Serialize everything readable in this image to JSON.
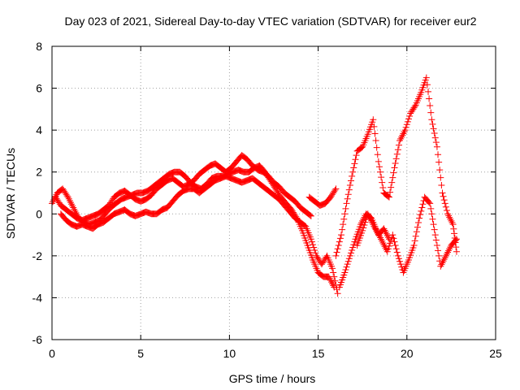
{
  "chart_data": {
    "type": "scatter",
    "title": "Day 023 of 2021, Sidereal Day-to-day VTEC variation (SDTVAR) for receiver eur2",
    "xlabel": "GPS time / hours",
    "ylabel": "SDTVAR / TECUs",
    "xlim": [
      0,
      25
    ],
    "ylim": [
      -6,
      8
    ],
    "xticks": [
      0,
      5,
      10,
      15,
      20,
      25
    ],
    "yticks": [
      -6,
      -4,
      -2,
      0,
      2,
      4,
      6,
      8
    ],
    "grid": true,
    "marker": "+",
    "series": [
      {
        "name": "SDTVAR",
        "color": "#ff0000",
        "tracks": [
          {
            "x": [
              0.0,
              0.3,
              0.6,
              0.9,
              1.2,
              1.5,
              1.8,
              2.1,
              2.4,
              2.7,
              3.0,
              3.3,
              3.6,
              3.9,
              4.2,
              4.5,
              4.8,
              5.1,
              5.4,
              5.7,
              6.0,
              6.3,
              6.6,
              6.9,
              7.2,
              7.5,
              7.8,
              8.1,
              8.4,
              8.7,
              9.0,
              9.3,
              9.6,
              9.9,
              10.2,
              10.5,
              10.8,
              11.1,
              11.4,
              11.7,
              12.0,
              12.3,
              12.6,
              12.9,
              13.2,
              13.5,
              13.8,
              14.1,
              14.4,
              14.7,
              15.0,
              15.3,
              15.6,
              15.9
            ],
            "y": [
              0.5,
              1.0,
              1.2,
              0.8,
              0.3,
              -0.2,
              -0.4,
              -0.5,
              -0.4,
              -0.3,
              0.0,
              0.3,
              0.5,
              0.7,
              0.8,
              0.9,
              1.0,
              1.0,
              1.1,
              1.3,
              1.5,
              1.7,
              1.9,
              2.0,
              2.0,
              1.8,
              1.5,
              1.3,
              1.2,
              1.4,
              1.7,
              1.8,
              1.8,
              1.9,
              2.0,
              2.1,
              2.0,
              2.0,
              2.2,
              2.3,
              2.0,
              1.6,
              1.2,
              0.8,
              0.5,
              0.2,
              -0.2,
              -0.8,
              -1.5,
              -2.2,
              -2.8,
              -3.0,
              -3.0,
              -3.5
            ]
          },
          {
            "x": [
              0.5,
              0.8,
              1.1,
              1.4,
              1.7,
              2.0,
              2.3,
              2.6,
              2.9,
              3.2,
              3.5,
              3.8,
              4.1,
              4.4,
              4.7,
              5.0,
              5.3,
              5.6,
              5.9,
              6.2,
              6.5,
              6.8,
              7.1,
              7.4,
              7.7,
              8.0,
              8.3,
              8.6,
              8.9,
              9.2,
              9.5,
              9.8,
              10.1,
              10.4,
              10.7,
              11.0,
              11.3,
              11.6,
              11.9,
              12.2,
              12.5,
              12.8,
              13.1,
              13.4,
              13.7,
              14.0,
              14.3,
              14.6,
              14.9,
              15.2,
              15.5,
              15.8,
              16.1
            ],
            "y": [
              0.0,
              -0.3,
              -0.5,
              -0.6,
              -0.5,
              -0.6,
              -0.7,
              -0.5,
              -0.4,
              -0.2,
              0.0,
              0.1,
              0.2,
              0.0,
              -0.1,
              0.0,
              0.1,
              0.0,
              0.0,
              0.2,
              0.3,
              0.6,
              0.9,
              1.1,
              1.2,
              1.2,
              1.0,
              1.2,
              1.4,
              1.6,
              1.7,
              1.8,
              1.7,
              1.6,
              1.5,
              1.6,
              1.7,
              1.5,
              1.3,
              1.1,
              0.9,
              0.7,
              0.4,
              0.1,
              -0.2,
              -0.4,
              -0.6,
              -1.2,
              -2.0,
              -2.4,
              -2.0,
              -2.6,
              -3.8
            ]
          },
          {
            "x": [
              0.2,
              0.5,
              0.8,
              1.1,
              1.4,
              1.7,
              2.0,
              2.3,
              2.6,
              2.9,
              3.2,
              3.5,
              3.8,
              4.1,
              4.4,
              4.7,
              5.0,
              5.3,
              5.6,
              5.9,
              6.2,
              6.5,
              6.8,
              7.1,
              7.4,
              7.7,
              8.0,
              8.3,
              8.6,
              8.9,
              9.2,
              9.5,
              9.8,
              10.1,
              10.4,
              10.7,
              11.0,
              11.3,
              11.6,
              11.9,
              12.2,
              12.5,
              12.8,
              13.1,
              13.4,
              13.7,
              14.0,
              14.3,
              14.6
            ],
            "y": [
              0.8,
              0.4,
              0.2,
              0.0,
              -0.2,
              -0.3,
              -0.2,
              -0.1,
              0.0,
              0.2,
              0.4,
              0.8,
              1.0,
              1.1,
              0.9,
              0.7,
              0.6,
              0.7,
              0.9,
              1.2,
              1.4,
              1.6,
              1.7,
              1.5,
              1.3,
              1.4,
              1.6,
              1.9,
              2.1,
              2.3,
              2.4,
              2.2,
              2.0,
              2.2,
              2.5,
              2.8,
              2.6,
              2.3,
              2.1,
              2.0,
              1.8,
              1.5,
              1.3,
              1.0,
              0.8,
              0.6,
              0.3,
              0.1,
              -0.1
            ]
          },
          {
            "x": [
              16.0,
              16.3,
              16.6,
              16.9,
              17.2,
              17.5,
              17.8,
              18.1,
              18.4,
              18.7,
              19.0,
              19.3,
              19.6,
              19.9,
              20.2,
              20.5,
              20.8,
              21.1,
              21.4,
              21.7,
              22.0,
              22.3,
              22.6,
              22.8
            ],
            "y": [
              -2.0,
              -1.0,
              0.5,
              1.8,
              3.0,
              3.2,
              3.8,
              4.5,
              2.5,
              1.0,
              0.8,
              2.2,
              3.5,
              4.0,
              4.8,
              5.2,
              5.8,
              6.5,
              4.5,
              3.2,
              1.0,
              0.0,
              -0.5,
              -1.8
            ]
          },
          {
            "x": [
              16.2,
              16.5,
              16.8,
              17.1,
              17.4,
              17.7,
              18.0,
              18.3,
              18.6,
              18.9,
              19.2,
              19.5,
              19.8,
              20.1,
              20.4,
              20.7,
              21.0,
              21.3,
              21.6,
              21.9,
              22.2,
              22.5,
              22.8
            ],
            "y": [
              -3.5,
              -2.8,
              -2.0,
              -1.2,
              -0.5,
              0.0,
              -0.2,
              -0.8,
              -1.3,
              -1.8,
              -1.0,
              -2.0,
              -2.8,
              -2.2,
              -1.5,
              -0.2,
              0.8,
              0.5,
              -1.0,
              -2.5,
              -2.0,
              -1.5,
              -1.2
            ]
          },
          {
            "x": [
              14.5,
              14.8,
              15.1,
              15.4,
              15.7,
              16.0
            ],
            "y": [
              0.8,
              0.6,
              0.4,
              0.5,
              0.8,
              1.2
            ]
          },
          {
            "x": [
              17.2,
              17.5,
              17.8,
              18.1,
              18.4,
              18.7,
              19.0
            ],
            "y": [
              -1.5,
              -0.8,
              0.0,
              -0.5,
              -1.0,
              -0.7,
              -1.2
            ]
          }
        ]
      }
    ]
  }
}
